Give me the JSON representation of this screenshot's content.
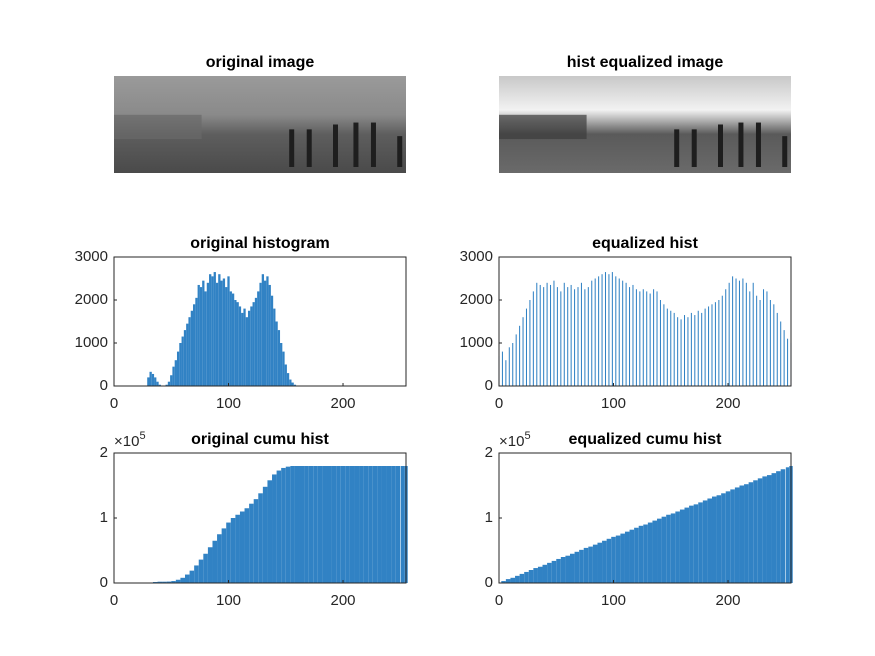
{
  "chart_data": [
    {
      "type": "image",
      "title": "original image"
    },
    {
      "type": "image",
      "title": "hist equalized image"
    },
    {
      "type": "bar",
      "title": "original histogram",
      "color": "#3182c4",
      "x": [
        28,
        30,
        32,
        34,
        36,
        38,
        40,
        42,
        44,
        46,
        48,
        50,
        52,
        54,
        56,
        58,
        60,
        62,
        64,
        66,
        68,
        70,
        72,
        74,
        76,
        78,
        80,
        82,
        84,
        86,
        88,
        90,
        92,
        94,
        96,
        98,
        100,
        102,
        104,
        106,
        108,
        110,
        112,
        114,
        116,
        118,
        120,
        122,
        124,
        126,
        128,
        130,
        132,
        134,
        136,
        138,
        140,
        142,
        144,
        146,
        148,
        150,
        152,
        154,
        156,
        158,
        160
      ],
      "values": [
        0,
        200,
        330,
        280,
        200,
        100,
        30,
        0,
        0,
        30,
        100,
        250,
        450,
        600,
        800,
        1000,
        1150,
        1300,
        1450,
        1600,
        1750,
        1900,
        2050,
        2350,
        2300,
        2450,
        2200,
        2400,
        2600,
        2550,
        2650,
        2400,
        2600,
        2450,
        2500,
        2300,
        2550,
        2200,
        2150,
        2000,
        1950,
        1850,
        1700,
        1800,
        1600,
        1750,
        1850,
        1950,
        2050,
        2200,
        2400,
        2600,
        2450,
        2550,
        2350,
        2100,
        1800,
        1500,
        1300,
        1000,
        800,
        500,
        300,
        150,
        80,
        30,
        0
      ],
      "xlim": [
        0,
        255
      ],
      "xticks": [
        0,
        100,
        200
      ],
      "ylim": [
        0,
        3000
      ],
      "yticks": [
        0,
        1000,
        2000,
        3000
      ]
    },
    {
      "type": "bar",
      "title": "equalized hist",
      "color": "#3182c4",
      "x": [
        0,
        3,
        6,
        9,
        12,
        15,
        18,
        21,
        24,
        27,
        30,
        33,
        36,
        39,
        42,
        45,
        48,
        51,
        54,
        57,
        60,
        63,
        66,
        69,
        72,
        75,
        78,
        81,
        84,
        87,
        90,
        93,
        96,
        99,
        102,
        105,
        108,
        111,
        114,
        117,
        120,
        123,
        126,
        129,
        132,
        135,
        138,
        141,
        144,
        147,
        150,
        153,
        156,
        159,
        162,
        165,
        168,
        171,
        174,
        177,
        180,
        183,
        186,
        189,
        192,
        195,
        198,
        201,
        204,
        207,
        210,
        213,
        216,
        219,
        222,
        225,
        228,
        231,
        234,
        237,
        240,
        243,
        246,
        249,
        252,
        255
      ],
      "values": [
        700,
        800,
        600,
        900,
        1000,
        1200,
        1400,
        1600,
        1800,
        2000,
        2200,
        2400,
        2350,
        2300,
        2400,
        2350,
        2450,
        2300,
        2200,
        2400,
        2300,
        2350,
        2250,
        2300,
        2400,
        2250,
        2300,
        2450,
        2500,
        2550,
        2600,
        2650,
        2600,
        2650,
        2550,
        2500,
        2450,
        2400,
        2300,
        2350,
        2250,
        2200,
        2250,
        2200,
        2150,
        2250,
        2200,
        2000,
        1900,
        1800,
        1750,
        1700,
        1600,
        1550,
        1650,
        1600,
        1700,
        1650,
        1750,
        1700,
        1800,
        1850,
        1900,
        1950,
        2000,
        2100,
        2250,
        2400,
        2550,
        2500,
        2450,
        2500,
        2400,
        2200,
        2400,
        2100,
        2000,
        2250,
        2200,
        2000,
        1900,
        1700,
        1500,
        1300,
        1100,
        1000
      ],
      "xlim": [
        0,
        255
      ],
      "xticks": [
        0,
        100,
        200
      ],
      "ylim": [
        0,
        3000
      ],
      "yticks": [
        0,
        1000,
        2000,
        3000
      ]
    },
    {
      "type": "bar",
      "title": "original cumu hist",
      "color": "#3182c4",
      "y_multiplier": "×10",
      "y_multiplier_exponent": "5",
      "x": [
        0,
        4,
        8,
        12,
        16,
        20,
        24,
        28,
        32,
        36,
        40,
        44,
        48,
        52,
        56,
        60,
        64,
        68,
        72,
        76,
        80,
        84,
        88,
        92,
        96,
        100,
        104,
        108,
        112,
        116,
        120,
        124,
        128,
        132,
        136,
        140,
        144,
        148,
        152,
        156,
        160,
        164,
        168,
        172,
        176,
        180,
        184,
        188,
        192,
        196,
        200,
        204,
        208,
        212,
        216,
        220,
        224,
        228,
        232,
        236,
        240,
        244,
        248,
        252,
        255
      ],
      "values": [
        0,
        0,
        0,
        0,
        0,
        0,
        0,
        0,
        0.005,
        0.015,
        0.02,
        0.02,
        0.022,
        0.03,
        0.05,
        0.08,
        0.13,
        0.19,
        0.27,
        0.36,
        0.45,
        0.55,
        0.65,
        0.75,
        0.84,
        0.93,
        1.0,
        1.05,
        1.1,
        1.15,
        1.22,
        1.29,
        1.38,
        1.48,
        1.58,
        1.67,
        1.73,
        1.77,
        1.79,
        1.8,
        1.8,
        1.8,
        1.8,
        1.8,
        1.8,
        1.8,
        1.8,
        1.8,
        1.8,
        1.8,
        1.8,
        1.8,
        1.8,
        1.8,
        1.8,
        1.8,
        1.8,
        1.8,
        1.8,
        1.8,
        1.8,
        1.8,
        1.8,
        1.8,
        1.8
      ],
      "xlim": [
        0,
        255
      ],
      "xticks": [
        0,
        100,
        200
      ],
      "ylim": [
        0,
        2
      ],
      "yticks": [
        0,
        1,
        2
      ]
    },
    {
      "type": "bar",
      "title": "equalized cumu hist",
      "color": "#3182c4",
      "y_multiplier": "×10",
      "y_multiplier_exponent": "5",
      "x": [
        0,
        4,
        8,
        12,
        16,
        20,
        24,
        28,
        32,
        36,
        40,
        44,
        48,
        52,
        56,
        60,
        64,
        68,
        72,
        76,
        80,
        84,
        88,
        92,
        96,
        100,
        104,
        108,
        112,
        116,
        120,
        124,
        128,
        132,
        136,
        140,
        144,
        148,
        152,
        156,
        160,
        164,
        168,
        172,
        176,
        180,
        184,
        188,
        192,
        196,
        200,
        204,
        208,
        212,
        216,
        220,
        224,
        228,
        232,
        236,
        240,
        244,
        248,
        252,
        255
      ],
      "values": [
        0,
        0.03,
        0.06,
        0.08,
        0.11,
        0.14,
        0.17,
        0.2,
        0.23,
        0.25,
        0.28,
        0.31,
        0.34,
        0.37,
        0.4,
        0.42,
        0.45,
        0.48,
        0.51,
        0.54,
        0.56,
        0.59,
        0.62,
        0.65,
        0.68,
        0.71,
        0.73,
        0.76,
        0.79,
        0.82,
        0.85,
        0.88,
        0.9,
        0.93,
        0.96,
        0.99,
        1.02,
        1.05,
        1.07,
        1.1,
        1.13,
        1.16,
        1.19,
        1.21,
        1.24,
        1.27,
        1.3,
        1.33,
        1.35,
        1.38,
        1.41,
        1.44,
        1.47,
        1.5,
        1.52,
        1.55,
        1.58,
        1.61,
        1.64,
        1.66,
        1.69,
        1.72,
        1.75,
        1.78,
        1.8
      ],
      "xlim": [
        0,
        255
      ],
      "xticks": [
        0,
        100,
        200
      ],
      "ylim": [
        0,
        2
      ],
      "yticks": [
        0,
        1,
        2
      ]
    }
  ]
}
